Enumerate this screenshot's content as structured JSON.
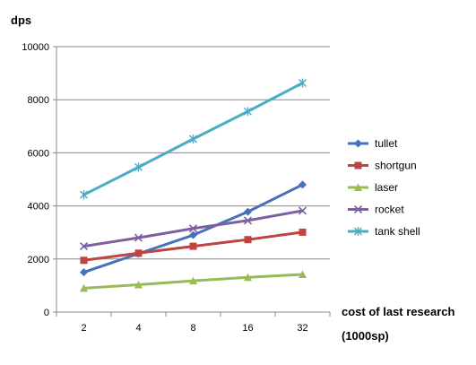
{
  "chart_data": {
    "type": "line",
    "title": "",
    "ylabel": "dps",
    "xlabel": "cost of last research",
    "xlabel_unit": "(1000sp)",
    "categories": [
      "2",
      "4",
      "8",
      "16",
      "32"
    ],
    "ylim": [
      0,
      10000
    ],
    "yticks": [
      0,
      2000,
      4000,
      6000,
      8000,
      10000
    ],
    "grid": "horizontal",
    "legend": "right",
    "series": [
      {
        "name": "tullet",
        "color": "#4572b8",
        "marker": "diamond",
        "values": [
          1500,
          2200,
          2900,
          3780,
          4800
        ]
      },
      {
        "name": "shortgun",
        "color": "#bf4340",
        "marker": "square",
        "values": [
          1950,
          2220,
          2480,
          2730,
          3010
        ]
      },
      {
        "name": "laser",
        "color": "#99bb55",
        "marker": "triangle",
        "values": [
          900,
          1030,
          1180,
          1310,
          1420
        ]
      },
      {
        "name": "rocket",
        "color": "#7e5fa0",
        "marker": "x",
        "values": [
          2480,
          2800,
          3150,
          3450,
          3820
        ]
      },
      {
        "name": "tank shell",
        "color": "#4aacc6",
        "marker": "asterisk",
        "values": [
          4420,
          5460,
          6520,
          7560,
          8630
        ]
      }
    ]
  }
}
